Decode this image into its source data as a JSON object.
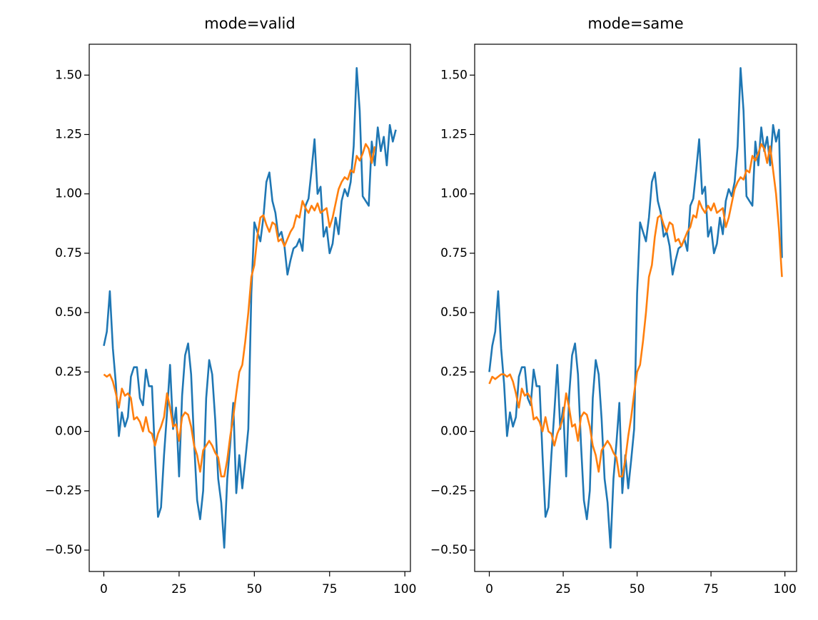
{
  "chart_data": [
    {
      "type": "line",
      "title": "mode=valid",
      "xlim": [
        -4.85,
        101.85
      ],
      "xticks": [
        0,
        25,
        50,
        75,
        100
      ],
      "ylim": [
        -0.59,
        1.63
      ],
      "yticks": [
        {
          "value": -0.5,
          "label": "−0.50"
        },
        {
          "value": -0.25,
          "label": "−0.25"
        },
        {
          "value": 0,
          "label": "0.00"
        },
        {
          "value": 0.25,
          "label": "0.25"
        },
        {
          "value": 0.5,
          "label": "0.50"
        },
        {
          "value": 0.75,
          "label": "0.75"
        },
        {
          "value": 1,
          "label": "1.00"
        },
        {
          "value": 1.25,
          "label": "1.25"
        },
        {
          "value": 1.5,
          "label": "1.50"
        }
      ],
      "series": [
        {
          "color": "#1f77b4",
          "values": [
            0.36,
            0.42,
            0.59,
            0.35,
            0.2,
            -0.02,
            0.08,
            0.02,
            0.06,
            0.23,
            0.27,
            0.27,
            0.14,
            0.11,
            0.26,
            0.19,
            0.19,
            -0.1,
            -0.36,
            -0.32,
            -0.1,
            0.08,
            0.28,
            0.01,
            0.1,
            -0.19,
            0.15,
            0.32,
            0.37,
            0.24,
            -0.05,
            -0.29,
            -0.37,
            -0.25,
            0.14,
            0.3,
            0.24,
            0.05,
            -0.2,
            -0.3,
            -0.49,
            -0.2,
            -0.05,
            0.12,
            -0.26,
            -0.1,
            -0.24,
            -0.12,
            0.01,
            0.58,
            0.88,
            0.84,
            0.8,
            0.9,
            1.05,
            1.09,
            0.97,
            0.92,
            0.82,
            0.84,
            0.78,
            0.66,
            0.72,
            0.77,
            0.78,
            0.81,
            0.76,
            0.95,
            0.98,
            1.1,
            1.23,
            1.0,
            1.03,
            0.82,
            0.86,
            0.75,
            0.79,
            0.9,
            0.83,
            0.97,
            1.02,
            0.99,
            1.05,
            1.2,
            1.53,
            1.35,
            0.99,
            0.97,
            0.95,
            1.22,
            1.12,
            1.28,
            1.18,
            1.24,
            1.12,
            1.29,
            1.22,
            1.27
          ]
        },
        {
          "color": "#ff7f0e",
          "values": [
            0.24,
            0.23,
            0.24,
            0.21,
            0.16,
            0.1,
            0.18,
            0.15,
            0.16,
            0.14,
            0.05,
            0.06,
            0.04,
            0.0,
            0.06,
            0.0,
            -0.01,
            -0.06,
            -0.01,
            0.02,
            0.06,
            0.16,
            0.1,
            0.02,
            0.03,
            -0.04,
            0.06,
            0.08,
            0.07,
            0.02,
            -0.06,
            -0.1,
            -0.17,
            -0.08,
            -0.06,
            -0.04,
            -0.06,
            -0.09,
            -0.11,
            -0.19,
            -0.19,
            -0.12,
            -0.02,
            0.06,
            0.16,
            0.25,
            0.28,
            0.38,
            0.5,
            0.65,
            0.7,
            0.82,
            0.9,
            0.91,
            0.87,
            0.84,
            0.88,
            0.87,
            0.8,
            0.81,
            0.78,
            0.81,
            0.84,
            0.86,
            0.91,
            0.9,
            0.97,
            0.94,
            0.92,
            0.95,
            0.93,
            0.96,
            0.92,
            0.93,
            0.94,
            0.86,
            0.9,
            0.96,
            1.02,
            1.05,
            1.07,
            1.06,
            1.1,
            1.09,
            1.16,
            1.14,
            1.17,
            1.21,
            1.19,
            1.13,
            1.2
          ]
        }
      ]
    },
    {
      "type": "line",
      "title": "mode=same",
      "xlim": [
        -4.95,
        103.95
      ],
      "xticks": [
        0,
        25,
        50,
        75,
        100
      ],
      "ylim": [
        -0.59,
        1.63
      ],
      "yticks": [
        {
          "value": -0.5,
          "label": "−0.50"
        },
        {
          "value": -0.25,
          "label": "−0.25"
        },
        {
          "value": 0,
          "label": "0.00"
        },
        {
          "value": 0.25,
          "label": "0.25"
        },
        {
          "value": 0.5,
          "label": "0.50"
        },
        {
          "value": 0.75,
          "label": "0.75"
        },
        {
          "value": 1,
          "label": "1.00"
        },
        {
          "value": 1.25,
          "label": "1.25"
        },
        {
          "value": 1.5,
          "label": "1.50"
        }
      ],
      "series": [
        {
          "color": "#1f77b4",
          "values": [
            0.25,
            0.36,
            0.42,
            0.59,
            0.35,
            0.2,
            -0.02,
            0.08,
            0.02,
            0.06,
            0.23,
            0.27,
            0.27,
            0.14,
            0.11,
            0.26,
            0.19,
            0.19,
            -0.1,
            -0.36,
            -0.32,
            -0.1,
            0.08,
            0.28,
            0.01,
            0.1,
            -0.19,
            0.15,
            0.32,
            0.37,
            0.24,
            -0.05,
            -0.29,
            -0.37,
            -0.25,
            0.14,
            0.3,
            0.24,
            0.05,
            -0.2,
            -0.3,
            -0.49,
            -0.2,
            -0.05,
            0.12,
            -0.26,
            -0.1,
            -0.24,
            -0.12,
            0.01,
            0.58,
            0.88,
            0.84,
            0.8,
            0.9,
            1.05,
            1.09,
            0.97,
            0.92,
            0.82,
            0.84,
            0.78,
            0.66,
            0.72,
            0.77,
            0.78,
            0.81,
            0.76,
            0.95,
            0.98,
            1.1,
            1.23,
            1.0,
            1.03,
            0.82,
            0.86,
            0.75,
            0.79,
            0.9,
            0.83,
            0.97,
            1.02,
            0.99,
            1.05,
            1.2,
            1.53,
            1.35,
            0.99,
            0.97,
            0.95,
            1.22,
            1.12,
            1.28,
            1.18,
            1.24,
            1.12,
            1.29,
            1.22,
            1.27,
            0.73
          ]
        },
        {
          "color": "#ff7f0e",
          "values": [
            0.2,
            0.23,
            0.22,
            0.23,
            0.24,
            0.24,
            0.23,
            0.24,
            0.21,
            0.16,
            0.1,
            0.18,
            0.15,
            0.16,
            0.14,
            0.05,
            0.06,
            0.04,
            0.0,
            0.06,
            0.0,
            -0.01,
            -0.06,
            -0.01,
            0.02,
            0.06,
            0.16,
            0.1,
            0.02,
            0.03,
            -0.04,
            0.06,
            0.08,
            0.07,
            0.02,
            -0.06,
            -0.1,
            -0.17,
            -0.08,
            -0.06,
            -0.04,
            -0.06,
            -0.09,
            -0.11,
            -0.19,
            -0.19,
            -0.12,
            -0.02,
            0.06,
            0.16,
            0.25,
            0.28,
            0.38,
            0.5,
            0.65,
            0.7,
            0.82,
            0.9,
            0.91,
            0.87,
            0.84,
            0.88,
            0.87,
            0.8,
            0.81,
            0.78,
            0.81,
            0.84,
            0.86,
            0.91,
            0.9,
            0.97,
            0.94,
            0.92,
            0.95,
            0.93,
            0.96,
            0.92,
            0.93,
            0.94,
            0.86,
            0.9,
            0.96,
            1.02,
            1.05,
            1.07,
            1.06,
            1.1,
            1.09,
            1.16,
            1.14,
            1.17,
            1.21,
            1.19,
            1.13,
            1.2,
            1.1,
            1.0,
            0.85,
            0.65
          ]
        }
      ]
    }
  ]
}
